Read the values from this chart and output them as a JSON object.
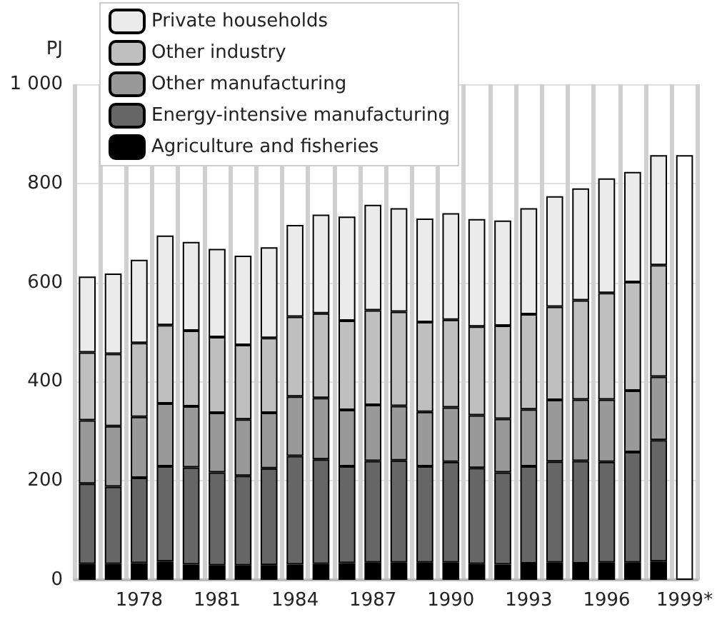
{
  "chart_data": {
    "type": "bar",
    "stacked": true,
    "ylabel": "PJ",
    "categories": [
      null,
      null,
      "1978",
      null,
      null,
      "1981",
      null,
      null,
      "1984",
      null,
      null,
      "1987",
      null,
      null,
      "1990",
      null,
      null,
      "1993",
      null,
      null,
      "1996",
      null,
      null,
      "1999*"
    ],
    "series": [
      {
        "name": "Agriculture and fisheries",
        "color": "#000000",
        "values": [
          32,
          32,
          34,
          37,
          31,
          29,
          29,
          30,
          31,
          32,
          34,
          35,
          35,
          35,
          35,
          32,
          31,
          33,
          35,
          33,
          35,
          35,
          37,
          null
        ]
      },
      {
        "name": "Energy-intensive manufacturing",
        "color": "#666666",
        "values": [
          162,
          156,
          172,
          192,
          196,
          188,
          181,
          195,
          219,
          211,
          195,
          205,
          206,
          194,
          203,
          194,
          186,
          196,
          204,
          207,
          203,
          223,
          245,
          null
        ]
      },
      {
        "name": "Other manufacturing",
        "color": "#999999",
        "values": [
          128,
          122,
          123,
          127,
          123,
          120,
          114,
          112,
          120,
          124,
          114,
          113,
          110,
          110,
          110,
          106,
          108,
          115,
          124,
          124,
          126,
          124,
          128,
          null
        ]
      },
      {
        "name": "Other industry",
        "color": "#bfbfbf",
        "values": [
          137,
          146,
          149,
          158,
          153,
          153,
          150,
          151,
          161,
          171,
          180,
          191,
          190,
          181,
          177,
          179,
          188,
          192,
          188,
          200,
          215,
          219,
          225,
          null
        ]
      },
      {
        "name": "Private households",
        "color": "#ebebeb",
        "values": [
          153,
          162,
          168,
          181,
          179,
          178,
          180,
          183,
          185,
          199,
          210,
          213,
          209,
          209,
          215,
          217,
          212,
          214,
          223,
          226,
          231,
          222,
          222,
          null
        ]
      },
      {
        "color": "#ffffff",
        "values": [
          null,
          null,
          null,
          null,
          null,
          null,
          null,
          null,
          null,
          null,
          null,
          null,
          null,
          null,
          null,
          null,
          null,
          null,
          null,
          null,
          null,
          null,
          null,
          857
        ]
      }
    ],
    "ylim": [
      0,
      1000
    ],
    "yticks": [
      0,
      200,
      400,
      600,
      800,
      {
        "value": 1000,
        "label": "1 000"
      }
    ],
    "grid": true,
    "legend": "top left"
  }
}
